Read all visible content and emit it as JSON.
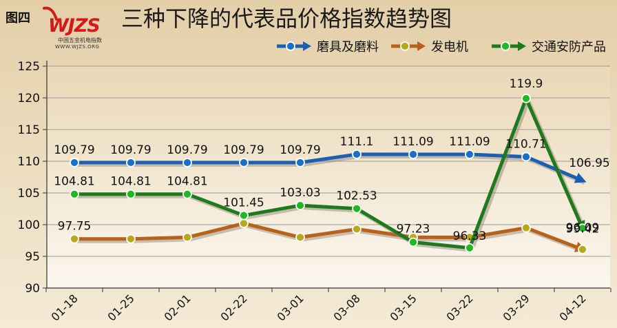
{
  "figure_label": "图四",
  "logo": {
    "text": "WJZS",
    "subtitle_cn": "中国五金机电指数",
    "url": "WWW.WJZS.ORG"
  },
  "chart_data": {
    "type": "line",
    "title": "三种下降的代表品价格指数趋势图",
    "categories": [
      "01-18",
      "01-25",
      "02-01",
      "02-22",
      "03-01",
      "03-08",
      "03-15",
      "03-22",
      "03-29",
      "04-12"
    ],
    "ylim": [
      90,
      125
    ],
    "yticks": [
      90,
      95,
      100,
      105,
      110,
      115,
      120,
      125
    ],
    "grid": true,
    "legend_position": "top-right",
    "series": [
      {
        "name": "磨具及磨料",
        "color": "#1a5fb4",
        "marker_color": "#1a6fc8",
        "values": [
          109.79,
          109.79,
          109.79,
          109.79,
          109.79,
          111.1,
          111.09,
          111.09,
          110.71,
          106.95
        ],
        "labels": [
          "109.79",
          "109.79",
          "109.79",
          "109.79",
          "109.79",
          "111.1",
          "111.09",
          "111.09",
          "110.71",
          "106.95"
        ]
      },
      {
        "name": "发电机",
        "color": "#b8611a",
        "marker_color": "#b8a81a",
        "values": [
          97.75,
          97.75,
          98.0,
          100.2,
          98.0,
          99.3,
          98.0,
          98.0,
          99.5,
          96.09
        ],
        "labels": [
          "97.75",
          "",
          "",
          "",
          "",
          "",
          "",
          "",
          "",
          "96.09"
        ]
      },
      {
        "name": "交通安防产品",
        "color": "#1f7a1f",
        "marker_color": "#22b822",
        "values": [
          104.81,
          104.81,
          104.81,
          101.45,
          103.03,
          102.53,
          97.23,
          96.33,
          119.9,
          99.42
        ],
        "labels": [
          "104.81",
          "104.81",
          "104.81",
          "101.45",
          "103.03",
          "102.53",
          "97.23",
          "96.33",
          "119.9",
          "99.42"
        ]
      }
    ]
  }
}
